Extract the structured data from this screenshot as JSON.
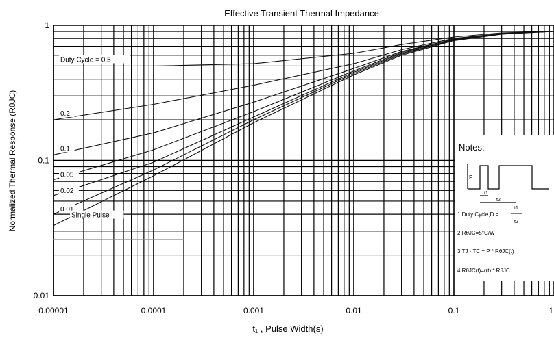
{
  "chart_data": {
    "type": "line",
    "title": "Effective Transient Thermal Impedance",
    "xlabel": "t₁ , Pulse Width(s)",
    "ylabel": "Normalized Thermal Response (RθJC)",
    "x_scale": "log",
    "y_scale": "log",
    "xlim": [
      1e-05,
      1
    ],
    "ylim": [
      0.01,
      1
    ],
    "x_ticks": [
      "0.00001",
      "0.0001",
      "0.001",
      "0.01",
      "0.1",
      "1"
    ],
    "y_ticks": [
      "0.01",
      "0.1",
      "1"
    ],
    "grid": true,
    "series": [
      {
        "name": "Duty Cycle = 0.5",
        "label": "Duty Cycle = 0.5",
        "x": [
          1e-05,
          0.0001,
          0.001,
          0.01,
          0.03,
          0.1,
          0.3,
          1
        ],
        "y": [
          0.5,
          0.5,
          0.52,
          0.62,
          0.72,
          0.82,
          0.88,
          0.9
        ]
      },
      {
        "name": "0.2",
        "label": "0.2",
        "x": [
          1e-05,
          0.0001,
          0.001,
          0.01,
          0.03,
          0.1,
          0.3,
          1
        ],
        "y": [
          0.2,
          0.26,
          0.36,
          0.52,
          0.66,
          0.8,
          0.87,
          0.9
        ]
      },
      {
        "name": "0.1",
        "label": "0.1",
        "x": [
          1e-05,
          0.0001,
          0.001,
          0.01,
          0.03,
          0.1,
          0.3,
          1
        ],
        "y": [
          0.11,
          0.16,
          0.27,
          0.48,
          0.64,
          0.79,
          0.87,
          0.9
        ]
      },
      {
        "name": "0.05",
        "label": "0.05",
        "x": [
          1e-05,
          0.0001,
          0.001,
          0.01,
          0.03,
          0.1,
          0.3,
          1
        ],
        "y": [
          0.072,
          0.12,
          0.23,
          0.46,
          0.63,
          0.79,
          0.87,
          0.9
        ]
      },
      {
        "name": "0.02",
        "label": "0.02",
        "x": [
          1e-05,
          0.0001,
          0.001,
          0.01,
          0.03,
          0.1,
          0.3,
          1
        ],
        "y": [
          0.055,
          0.097,
          0.21,
          0.45,
          0.62,
          0.78,
          0.87,
          0.9
        ]
      },
      {
        "name": "0.01",
        "label": "0.01",
        "x": [
          1e-05,
          0.0001,
          0.001,
          0.01,
          0.03,
          0.1,
          0.3,
          1
        ],
        "y": [
          0.04,
          0.085,
          0.2,
          0.44,
          0.61,
          0.78,
          0.87,
          0.9
        ]
      },
      {
        "name": "Single Pulse",
        "label": "Single Pulse",
        "x": [
          1e-05,
          0.0001,
          0.001,
          0.01,
          0.03,
          0.1,
          0.3,
          1
        ],
        "y": [
          0.033,
          0.077,
          0.19,
          0.43,
          0.6,
          0.77,
          0.86,
          0.9
        ]
      }
    ],
    "single_pulse_line": {
      "x": [
        1e-05,
        0.0002
      ],
      "y": [
        0.026,
        0.026
      ]
    },
    "notes": {
      "heading": "Notes:",
      "line1": "1.Duty Cycle,D =",
      "t1": "t1",
      "t2": "t2",
      "pulse_label": "P",
      "line2": "2.RθJC=5°C/W",
      "line3": "3.TJ - TC = P * RθJC(t)",
      "line4": "4.RθJC(t)=r(t) * RθJC"
    }
  }
}
